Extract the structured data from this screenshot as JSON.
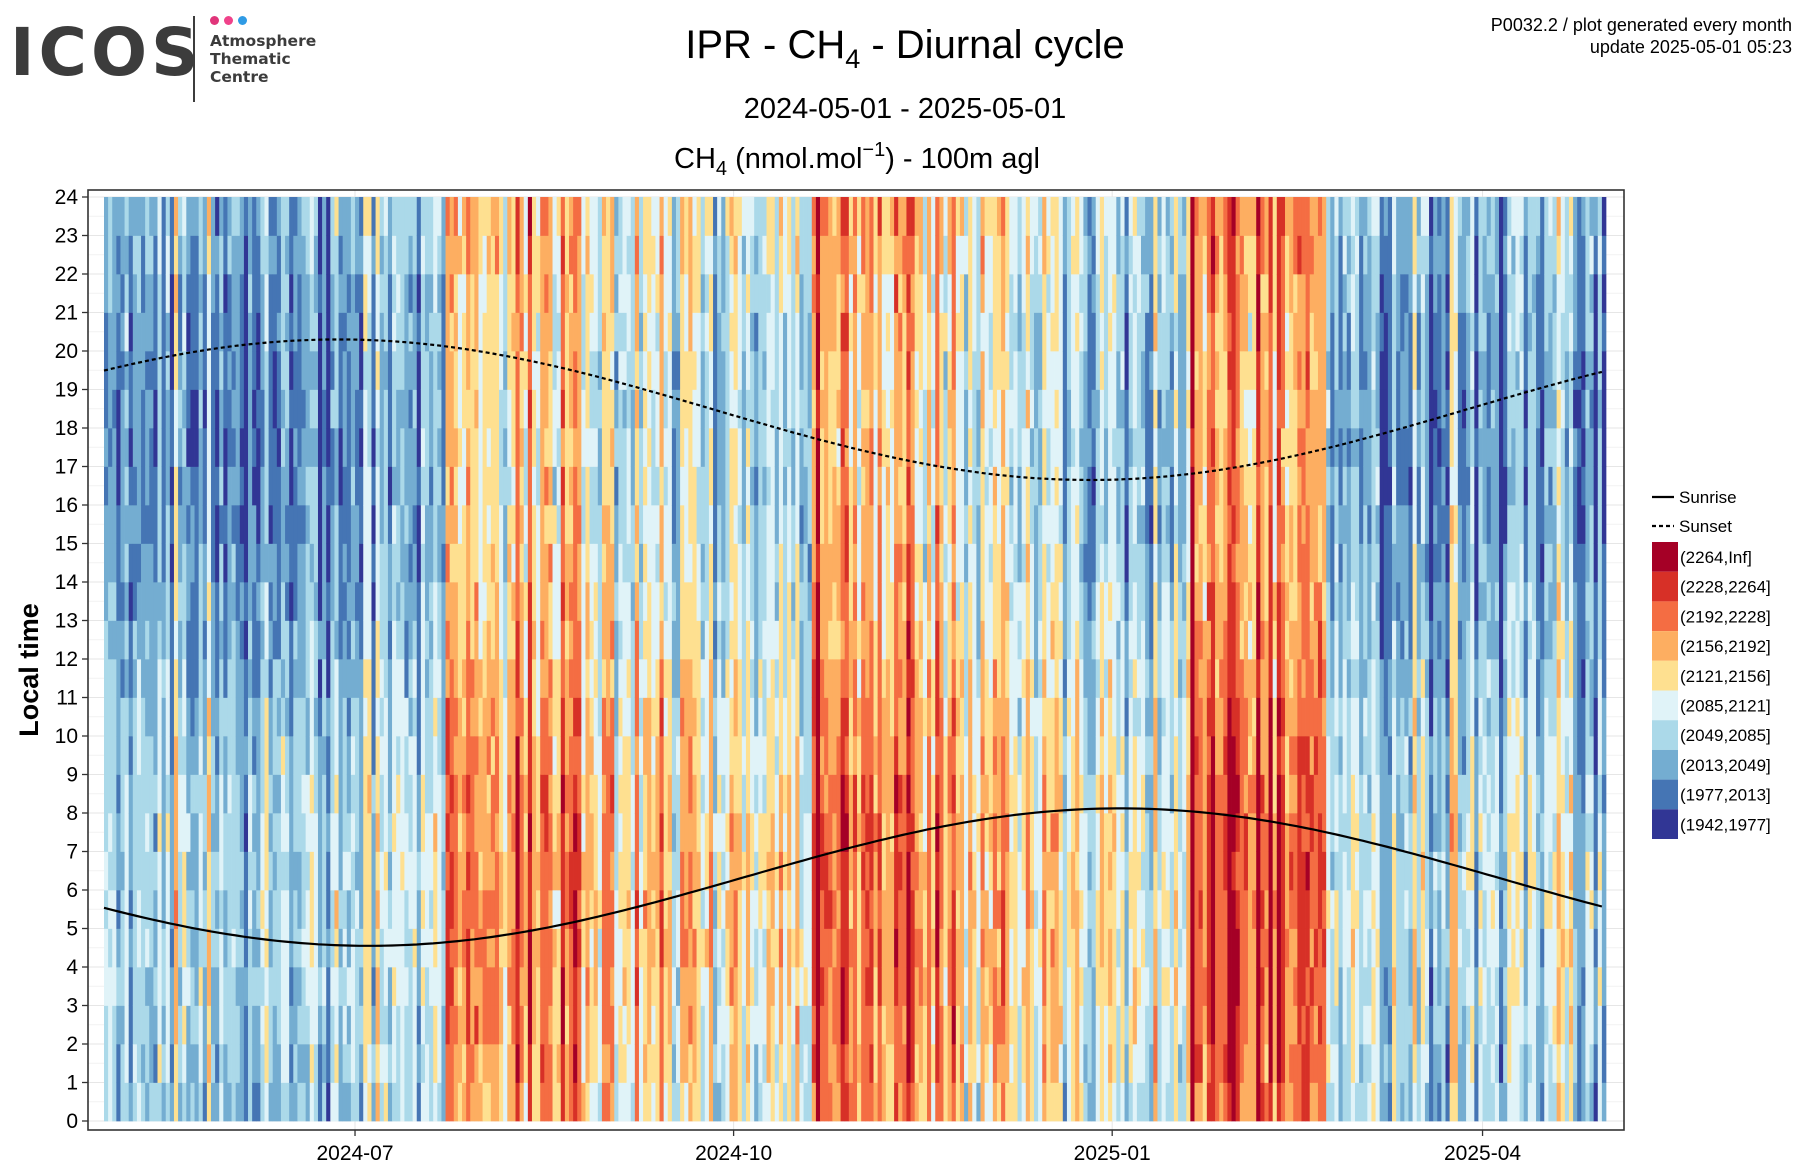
{
  "logo": {
    "wordmark": "ICOS",
    "lines": [
      "Atmosphere",
      "Thematic",
      "Centre"
    ],
    "dot_colors": [
      "#e0357a",
      "#f0428a",
      "#2f9be5"
    ]
  },
  "header": {
    "product": "P0032.2 / plot generated every month",
    "update": "update  2025-05-01 05:23"
  },
  "chart_data": {
    "type": "heatmap",
    "title": {
      "prefix": "IPR - CH",
      "sub": "4",
      "suffix": " - Diurnal cycle"
    },
    "subtitle": "2024-05-01 - 2025-05-01",
    "panel_title": {
      "prefix": "CH",
      "sub": "4",
      "mid": " (nmol.mol",
      "sup": "−1",
      "suffix": ") - 100m agl"
    },
    "ylabel": "Local time",
    "xlabel": "",
    "x_range": [
      "2024-05-01",
      "2025-05-01"
    ],
    "y_range": [
      0,
      24
    ],
    "x_ticks": [
      "2024-07",
      "2024-10",
      "2025-01",
      "2025-04"
    ],
    "x_tick_dates": [
      "2024-07-01",
      "2024-10-01",
      "2025-01-01",
      "2025-04-01"
    ],
    "y_ticks": [
      0,
      1,
      2,
      3,
      4,
      5,
      6,
      7,
      8,
      9,
      10,
      11,
      12,
      13,
      14,
      15,
      16,
      17,
      18,
      19,
      20,
      21,
      22,
      23,
      24
    ],
    "grid": true,
    "legend_position": "right",
    "lines": [
      {
        "name": "Sunrise",
        "style": "solid",
        "min_hour": 4.55,
        "min_date": "2024-06-21",
        "max_hour": 8.12,
        "max_date": "2025-01-03"
      },
      {
        "name": "Sunset",
        "style": "dashed",
        "max_hour": 20.3,
        "max_date": "2024-06-27",
        "min_hour": 16.65,
        "min_date": "2024-12-12"
      }
    ],
    "bins": [
      {
        "label": "(2264,Inf]",
        "color": "#a50026"
      },
      {
        "label": "(2228,2264]",
        "color": "#d73027"
      },
      {
        "label": "(2192,2228]",
        "color": "#f46d43"
      },
      {
        "label": "(2156,2192]",
        "color": "#fdae61"
      },
      {
        "label": "(2121,2156]",
        "color": "#fee090"
      },
      {
        "label": "(2085,2121]",
        "color": "#e0f3f8"
      },
      {
        "label": "(2049,2085]",
        "color": "#abd9e9"
      },
      {
        "label": "(2013,2049]",
        "color": "#74add1"
      },
      {
        "label": "(1977,2013]",
        "color": "#4575b4"
      },
      {
        "label": "(1942,1977]",
        "color": "#313695"
      }
    ],
    "days": 365,
    "hours": 24,
    "base_level_profile": [
      {
        "from": "2024-05-01",
        "to": "2024-07-01",
        "level": 2045
      },
      {
        "from": "2024-07-01",
        "to": "2024-07-23",
        "level": 2070
      },
      {
        "from": "2024-07-23",
        "to": "2024-08-25",
        "level": 2170
      },
      {
        "from": "2024-08-25",
        "to": "2024-10-20",
        "level": 2115
      },
      {
        "from": "2024-10-20",
        "to": "2024-11-22",
        "level": 2175
      },
      {
        "from": "2024-11-22",
        "to": "2024-12-20",
        "level": 2140
      },
      {
        "from": "2024-12-20",
        "to": "2025-01-20",
        "level": 2080
      },
      {
        "from": "2025-01-20",
        "to": "2025-02-22",
        "level": 2195
      },
      {
        "from": "2025-02-22",
        "to": "2025-05-01",
        "level": 2060
      }
    ]
  }
}
